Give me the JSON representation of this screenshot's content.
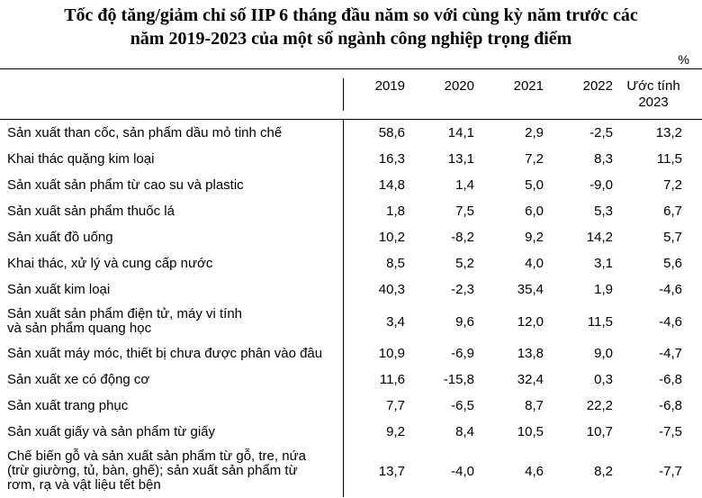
{
  "title_line1": "Tốc độ tăng/giảm chỉ số IIP 6 tháng đầu năm so với cùng kỳ năm trước các",
  "title_line2": "năm 2019-2023 của một số ngành công nghiệp trọng điểm",
  "unit": "%",
  "columns": [
    "2019",
    "2020",
    "2021",
    "2022",
    "Ước tính\n2023"
  ],
  "rows": [
    {
      "label": "Sản xuất than cốc, sản phẩm dầu mỏ tinh chế",
      "values": [
        "58,6",
        "14,1",
        "2,9",
        "-2,5",
        "13,2"
      ]
    },
    {
      "label": "Khai thác quặng kim loại",
      "values": [
        "16,3",
        "13,1",
        "7,2",
        "8,3",
        "11,5"
      ]
    },
    {
      "label": "Sản xuất sản phẩm từ cao su và plastic",
      "values": [
        "14,8",
        "1,4",
        "5,0",
        "-9,0",
        "7,2"
      ]
    },
    {
      "label": "Sản xuất sản phẩm thuốc lá",
      "values": [
        "1,8",
        "7,5",
        "6,0",
        "5,3",
        "6,7"
      ]
    },
    {
      "label": "Sản xuất đồ uống",
      "values": [
        "10,2",
        "-8,2",
        "9,2",
        "14,2",
        "5,7"
      ]
    },
    {
      "label": "Khai thác, xử lý và cung cấp nước",
      "values": [
        "8,5",
        "5,2",
        "4,0",
        "3,1",
        "5,6"
      ]
    },
    {
      "label": "Sản xuất kim loại",
      "values": [
        "40,3",
        "-2,3",
        "35,4",
        "1,9",
        "-4,6"
      ]
    },
    {
      "label": "Sản xuất sản phẩm điện tử, máy vi tính\nvà sản phẩm quang học",
      "values": [
        "3,4",
        "9,6",
        "12,0",
        "11,5",
        "-4,6"
      ]
    },
    {
      "label": "Sản xuất máy móc, thiết bị chưa được phân vào đâu",
      "values": [
        "10,9",
        "-6,9",
        "13,8",
        "9,0",
        "-4,7"
      ]
    },
    {
      "label": "Sản xuất xe có động cơ",
      "values": [
        "11,6",
        "-15,8",
        "32,4",
        "0,3",
        "-6,8"
      ]
    },
    {
      "label": "Sản xuất trang phục",
      "values": [
        "7,7",
        "-6,5",
        "8,7",
        "22,2",
        "-6,8"
      ]
    },
    {
      "label": "Sản xuất giấy và sản phẩm từ giấy",
      "values": [
        "9,2",
        "8,4",
        "10,5",
        "10,7",
        "-7,5"
      ]
    },
    {
      "label": "Chế biến gỗ và sản xuất sản phẩm từ gỗ, tre, nứa\n(trừ giường, tủ, bàn, ghế); sản xuất sản phẩm từ\nrơm, rạ và vật liệu tết bện",
      "values": [
        "13,7",
        "-4,0",
        "4,6",
        "8,2",
        "-7,7"
      ]
    }
  ]
}
